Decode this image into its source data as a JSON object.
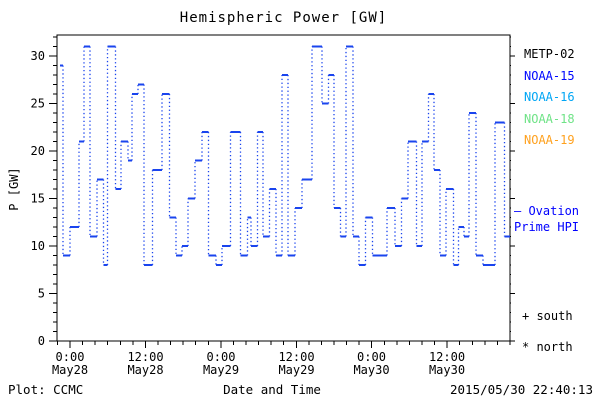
{
  "title": "Hemispheric Power [GW]",
  "footer": {
    "left": "Plot: CCMC",
    "center": "Date and Time",
    "right": "2015/05/30 22:40:13"
  },
  "legend": {
    "satellites": [
      {
        "label": "METP-02",
        "color": "#000000"
      },
      {
        "label": "NOAA-15",
        "color": "#0008ff"
      },
      {
        "label": "NOAA-16",
        "color": "#00a6f5"
      },
      {
        "label": "NOAA-18",
        "color": "#6fe387"
      },
      {
        "label": "NOAA-19",
        "color": "#ffa11e"
      }
    ],
    "model": {
      "line1": "— Ovation",
      "line2": "Prime HPI",
      "color": "#0000ff"
    },
    "markers": [
      {
        "symbol": "+",
        "label": "south"
      },
      {
        "symbol": "*",
        "label": "north"
      }
    ]
  },
  "chart_data": {
    "type": "line",
    "subtype": "step-stairs",
    "title": "Hemispheric Power [GW]",
    "xlabel": "Date and Time",
    "ylabel": "P [GW]",
    "ylim": [
      0,
      32.2
    ],
    "yticks_major": [
      0,
      5,
      10,
      15,
      20,
      25,
      30
    ],
    "ytick_minor_step": 1,
    "xlim_hours": [
      -2.07,
      70.0
    ],
    "x_ticks": [
      {
        "t": 0,
        "time": "0:00",
        "date": "May28"
      },
      {
        "t": 12,
        "time": "12:00",
        "date": "May28"
      },
      {
        "t": 24,
        "time": "0:00",
        "date": "May29"
      },
      {
        "t": 36,
        "time": "12:00",
        "date": "May29"
      },
      {
        "t": 48,
        "time": "0:00",
        "date": "May30"
      },
      {
        "t": 60,
        "time": "12:00",
        "date": "May30"
      }
    ],
    "x_minor_step_hours": 2,
    "grid": false,
    "legend_position": "right-outside",
    "series": [
      {
        "name": "Ovation Prime HPI",
        "color": "#1a44ee",
        "style": "horizontal solid steps with dotted vertical connectors",
        "units": "GW",
        "t_units": "hours since 2015-05-28 00:00",
        "t_end": 70.0,
        "steps": [
          {
            "t": -1.6,
            "v": 29
          },
          {
            "t": -1.1,
            "v": 9
          },
          {
            "t": 0.0,
            "v": 12
          },
          {
            "t": 1.4,
            "v": 21
          },
          {
            "t": 2.2,
            "v": 31
          },
          {
            "t": 3.2,
            "v": 11
          },
          {
            "t": 4.3,
            "v": 17
          },
          {
            "t": 5.3,
            "v": 8
          },
          {
            "t": 6.0,
            "v": 31
          },
          {
            "t": 7.2,
            "v": 16
          },
          {
            "t": 8.1,
            "v": 21
          },
          {
            "t": 9.2,
            "v": 19
          },
          {
            "t": 9.9,
            "v": 26
          },
          {
            "t": 10.8,
            "v": 27
          },
          {
            "t": 11.8,
            "v": 8
          },
          {
            "t": 13.1,
            "v": 18
          },
          {
            "t": 14.6,
            "v": 26
          },
          {
            "t": 15.8,
            "v": 13
          },
          {
            "t": 16.9,
            "v": 9
          },
          {
            "t": 17.8,
            "v": 10
          },
          {
            "t": 18.8,
            "v": 15
          },
          {
            "t": 19.9,
            "v": 19
          },
          {
            "t": 21.0,
            "v": 22
          },
          {
            "t": 22.0,
            "v": 9
          },
          {
            "t": 23.2,
            "v": 8
          },
          {
            "t": 24.2,
            "v": 10
          },
          {
            "t": 25.5,
            "v": 22
          },
          {
            "t": 27.1,
            "v": 9
          },
          {
            "t": 28.2,
            "v": 13
          },
          {
            "t": 28.8,
            "v": 10
          },
          {
            "t": 29.8,
            "v": 22
          },
          {
            "t": 30.7,
            "v": 11
          },
          {
            "t": 31.7,
            "v": 16
          },
          {
            "t": 32.8,
            "v": 9
          },
          {
            "t": 33.7,
            "v": 28
          },
          {
            "t": 34.7,
            "v": 9
          },
          {
            "t": 35.8,
            "v": 14
          },
          {
            "t": 36.9,
            "v": 17
          },
          {
            "t": 38.5,
            "v": 31
          },
          {
            "t": 40.1,
            "v": 25
          },
          {
            "t": 41.1,
            "v": 28
          },
          {
            "t": 42.0,
            "v": 14
          },
          {
            "t": 43.0,
            "v": 11
          },
          {
            "t": 43.9,
            "v": 31
          },
          {
            "t": 45.0,
            "v": 11
          },
          {
            "t": 46.0,
            "v": 8
          },
          {
            "t": 47.0,
            "v": 13
          },
          {
            "t": 48.1,
            "v": 9
          },
          {
            "t": 50.4,
            "v": 14
          },
          {
            "t": 51.7,
            "v": 10
          },
          {
            "t": 52.7,
            "v": 15
          },
          {
            "t": 53.8,
            "v": 21
          },
          {
            "t": 55.1,
            "v": 10
          },
          {
            "t": 56.0,
            "v": 21
          },
          {
            "t": 57.0,
            "v": 26
          },
          {
            "t": 57.9,
            "v": 18
          },
          {
            "t": 58.9,
            "v": 9
          },
          {
            "t": 59.8,
            "v": 16
          },
          {
            "t": 61.0,
            "v": 8
          },
          {
            "t": 61.8,
            "v": 12
          },
          {
            "t": 62.7,
            "v": 11
          },
          {
            "t": 63.5,
            "v": 24
          },
          {
            "t": 64.6,
            "v": 9
          },
          {
            "t": 65.7,
            "v": 8
          },
          {
            "t": 67.6,
            "v": 23
          },
          {
            "t": 69.1,
            "v": 11
          }
        ]
      }
    ]
  }
}
